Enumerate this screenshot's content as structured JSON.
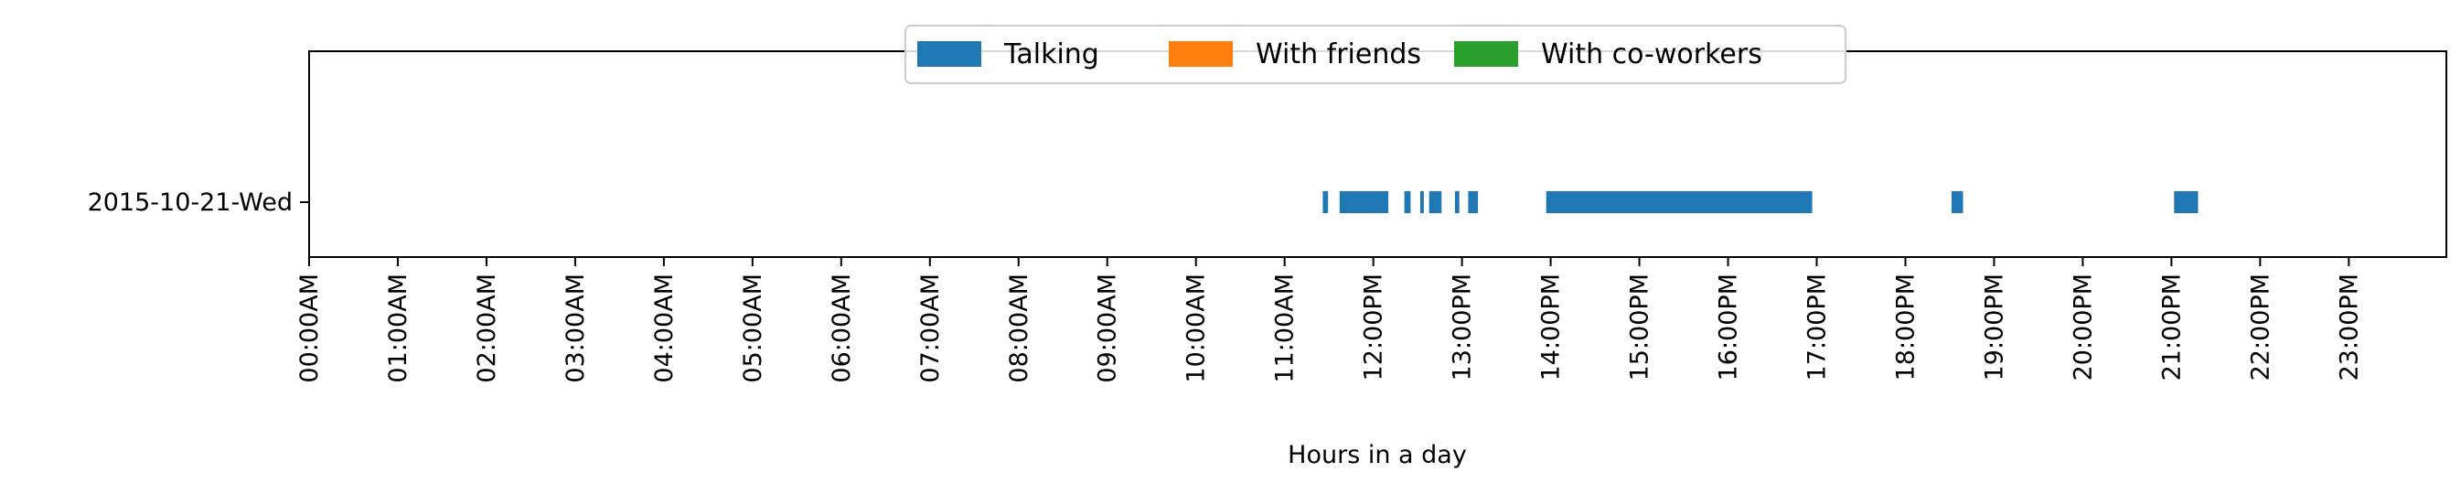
{
  "chart_data": {
    "type": "timeline",
    "title": "",
    "xlabel": "Hours in a day",
    "ylabel": "",
    "xlim": [
      0,
      24.1
    ],
    "categories": [
      "2015-10-21-Wed"
    ],
    "x_ticks": [
      {
        "value": 0,
        "label": "00:00AM"
      },
      {
        "value": 1,
        "label": "01:00AM"
      },
      {
        "value": 2,
        "label": "02:00AM"
      },
      {
        "value": 3,
        "label": "03:00AM"
      },
      {
        "value": 4,
        "label": "04:00AM"
      },
      {
        "value": 5,
        "label": "05:00AM"
      },
      {
        "value": 6,
        "label": "06:00AM"
      },
      {
        "value": 7,
        "label": "07:00AM"
      },
      {
        "value": 8,
        "label": "08:00AM"
      },
      {
        "value": 9,
        "label": "09:00AM"
      },
      {
        "value": 10,
        "label": "10:00AM"
      },
      {
        "value": 11,
        "label": "11:00AM"
      },
      {
        "value": 12,
        "label": "12:00PM"
      },
      {
        "value": 13,
        "label": "13:00PM"
      },
      {
        "value": 14,
        "label": "14:00PM"
      },
      {
        "value": 15,
        "label": "15:00PM"
      },
      {
        "value": 16,
        "label": "16:00PM"
      },
      {
        "value": 17,
        "label": "17:00PM"
      },
      {
        "value": 18,
        "label": "18:00PM"
      },
      {
        "value": 19,
        "label": "19:00PM"
      },
      {
        "value": 20,
        "label": "20:00PM"
      },
      {
        "value": 21,
        "label": "21:00PM"
      },
      {
        "value": 22,
        "label": "22:00PM"
      },
      {
        "value": 23,
        "label": "23:00PM"
      }
    ],
    "legend": {
      "position": "top-center",
      "entries": [
        {
          "label": "Talking",
          "color": "#1f77b4"
        },
        {
          "label": "With friends",
          "color": "#ff7f0e"
        },
        {
          "label": "With co-workers",
          "color": "#2ca02c"
        }
      ]
    },
    "series": [
      {
        "name": "Talking",
        "color": "#1f77b4",
        "category": "2015-10-21-Wed",
        "intervals": [
          [
            11.43,
            11.49
          ],
          [
            11.62,
            12.17
          ],
          [
            12.35,
            12.42
          ],
          [
            12.53,
            12.57
          ],
          [
            12.63,
            12.77
          ],
          [
            12.92,
            12.97
          ],
          [
            13.07,
            13.18
          ],
          [
            13.95,
            16.95
          ],
          [
            18.52,
            18.65
          ],
          [
            21.03,
            21.3
          ]
        ]
      },
      {
        "name": "With friends",
        "color": "#ff7f0e",
        "category": "2015-10-21-Wed",
        "intervals": []
      },
      {
        "name": "With co-workers",
        "color": "#2ca02c",
        "category": "2015-10-21-Wed",
        "intervals": []
      }
    ]
  }
}
